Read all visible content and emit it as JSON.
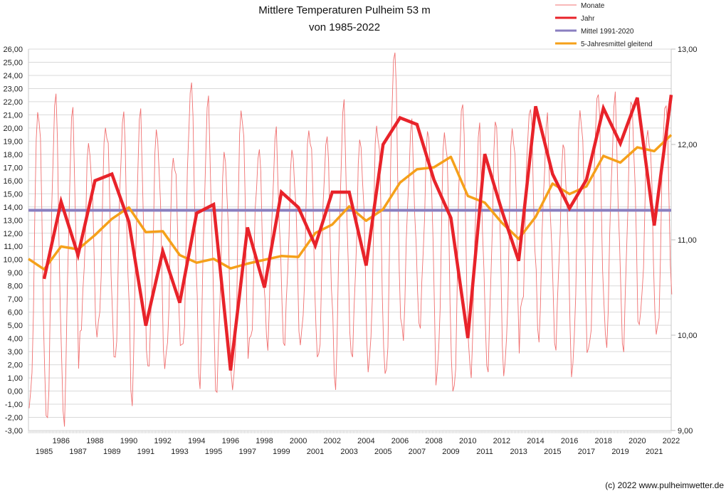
{
  "chart_data": {
    "type": "line",
    "title": "Mittlere Temperaturen Pulheim 53 m",
    "subtitle": "von 1985-2022",
    "xlabel": "",
    "ylabel_left": "",
    "ylabel_right": "",
    "grid": true,
    "legend_position": "top-right",
    "credit": "(c) 2022 www.pulheimwetter.de",
    "left_axis": {
      "min": -3,
      "max": 26,
      "step": 1,
      "tick_labels": [
        "-3,00",
        "-2,00",
        "-1,00",
        "0,00",
        "1,00",
        "2,00",
        "3,00",
        "4,00",
        "5,00",
        "6,00",
        "7,00",
        "8,00",
        "9,00",
        "10,00",
        "11,00",
        "12,00",
        "13,00",
        "14,00",
        "15,00",
        "16,00",
        "17,00",
        "18,00",
        "19,00",
        "20,00",
        "21,00",
        "22,00",
        "23,00",
        "24,00",
        "25,00",
        "26,00"
      ]
    },
    "right_axis": {
      "min": 9,
      "max": 13,
      "step": 1,
      "tick_labels": [
        "9,00",
        "10,00",
        "11,00",
        "12,00",
        "13,00"
      ]
    },
    "x_tick_labels_upper": [
      "1986",
      "1988",
      "1990",
      "1992",
      "1994",
      "1996",
      "1998",
      "2000",
      "2002",
      "2004",
      "2006",
      "2008",
      "2010",
      "2012",
      "2014",
      "2016",
      "2018",
      "2020",
      "2022"
    ],
    "x_tick_labels_lower": [
      "1985",
      "1987",
      "1989",
      "1991",
      "1993",
      "1995",
      "1997",
      "1999",
      "2001",
      "2003",
      "2005",
      "2007",
      "2009",
      "2011",
      "2013",
      "2015",
      "2017",
      "2019",
      "2021"
    ],
    "years": [
      1985,
      1986,
      1987,
      1988,
      1989,
      1990,
      1991,
      1992,
      1993,
      1994,
      1995,
      1996,
      1997,
      1998,
      1999,
      2000,
      2001,
      2002,
      2003,
      2004,
      2005,
      2006,
      2007,
      2008,
      2009,
      2010,
      2011,
      2012,
      2013,
      2014,
      2015,
      2016,
      2017,
      2018,
      2019,
      2020,
      2021,
      2022
    ],
    "series": [
      {
        "name": "Monate",
        "axis": "left",
        "color": "#f07070",
        "monthly_min_max_by_year": [
          [
            -1.7,
            21.6
          ],
          [
            -2.3,
            22.1
          ],
          [
            -1.9,
            21.2
          ],
          [
            4.3,
            19.1
          ],
          [
            3.8,
            20.3
          ],
          [
            2.3,
            20.7
          ],
          [
            -0.3,
            21.0
          ],
          [
            1.6,
            20.2
          ],
          [
            1.4,
            18.0
          ],
          [
            3.2,
            23.0
          ],
          [
            1.0,
            21.9
          ],
          [
            -0.3,
            18.5
          ],
          [
            -0.3,
            21.7
          ],
          [
            3.8,
            17.9
          ],
          [
            4.0,
            19.4
          ],
          [
            3.4,
            18.6
          ],
          [
            3.2,
            20.1
          ],
          [
            2.3,
            19.0
          ],
          [
            0.9,
            21.5
          ],
          [
            2.6,
            19.4
          ],
          [
            1.1,
            20.5
          ],
          [
            0.9,
            25.6
          ],
          [
            4.7,
            19.9
          ],
          [
            4.9,
            20.0
          ],
          [
            0.1,
            20.0
          ],
          [
            -0.4,
            21.7
          ],
          [
            1.8,
            19.6
          ],
          [
            1.6,
            20.8
          ],
          [
            0.8,
            20.3
          ],
          [
            6.1,
            21.3
          ],
          [
            4.5,
            20.3
          ],
          [
            3.4,
            19.0
          ],
          [
            0.7,
            21.7
          ],
          [
            2.9,
            22.6
          ],
          [
            4.0,
            21.9
          ],
          [
            3.3,
            22.3
          ],
          [
            4.8,
            20.1
          ],
          [
            4.0,
            21.8
          ]
        ]
      },
      {
        "name": "Jahr",
        "axis": "right",
        "color": "#e8232a",
        "values": [
          10.59,
          11.4,
          10.84,
          11.62,
          11.69,
          11.19,
          10.1,
          10.88,
          10.34,
          11.28,
          11.37,
          9.63,
          11.13,
          10.5,
          11.5,
          11.34,
          10.94,
          11.5,
          11.5,
          10.73,
          12.0,
          12.28,
          12.21,
          11.63,
          11.23,
          9.97,
          11.9,
          11.31,
          10.78,
          12.4,
          11.69,
          11.33,
          11.63,
          12.38,
          12.01,
          12.49,
          11.15,
          12.52
        ]
      },
      {
        "name": "Mittel 1991-2020",
        "axis": "right",
        "color": "#8a7fc0",
        "value": 11.31
      },
      {
        "name": "5-Jahresmittel gleitend",
        "axis": "right",
        "color": "#f5a01a",
        "start_value": 10.8,
        "values": [
          10.69,
          10.93,
          10.9,
          11.05,
          11.22,
          11.34,
          11.08,
          11.09,
          10.84,
          10.76,
          10.8,
          10.7,
          10.75,
          10.79,
          10.83,
          10.82,
          11.07,
          11.16,
          11.35,
          11.2,
          11.32,
          11.6,
          11.74,
          11.76,
          11.87,
          11.46,
          11.39,
          11.18,
          11.01,
          11.24,
          11.59,
          11.48,
          11.56,
          11.88,
          11.81,
          11.97,
          11.93,
          12.1
        ]
      }
    ]
  }
}
